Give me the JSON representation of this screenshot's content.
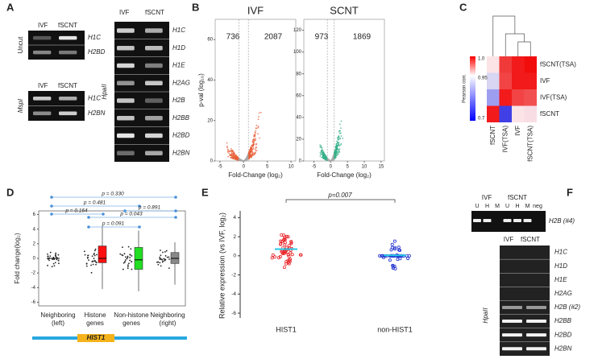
{
  "panelA": {
    "label": "A",
    "uncut": {
      "side": "Uncut",
      "cols": [
        "IVF",
        "fSCNT"
      ],
      "genes": [
        "H1C",
        "H2BD"
      ]
    },
    "mspi": {
      "side": "MspI",
      "cols": [
        "IVF",
        "fSCNT"
      ],
      "genes": [
        "H1C",
        "H2BN"
      ]
    },
    "hpaii": {
      "side": "HpaII",
      "cols": [
        "IVF",
        "fSCNT"
      ],
      "genes": [
        "H1C",
        "H1D",
        "H1E",
        "H2AG",
        "H2B",
        "H2BB",
        "H2BD",
        "H2BN"
      ]
    }
  },
  "panelB": {
    "label": "B",
    "ylabel": "p-val (log₁₀)",
    "xlabel": "Fold-Change (log₂)",
    "plots": [
      {
        "title": "IVF",
        "left": "736",
        "right": "2087",
        "color": "#e8603a",
        "xlim": [
          -6,
          11
        ],
        "xticks": [
          -5,
          0,
          5,
          10
        ],
        "ylim": [
          0,
          70
        ],
        "yticks": [
          0,
          20,
          40,
          60
        ]
      },
      {
        "title": "SCNT",
        "left": "973",
        "right": "1869",
        "color": "#35b08a",
        "xlim": [
          -8,
          16
        ],
        "xticks": [
          -5,
          0,
          5,
          10,
          15
        ],
        "ylim": [
          0,
          130
        ],
        "yticks": [
          0,
          20,
          40,
          60,
          80,
          100,
          120
        ]
      }
    ]
  },
  "panelC": {
    "label": "C",
    "legend_title": "Pearson corr.",
    "legend_ticks": [
      "1.0",
      "0.95",
      "0.7"
    ],
    "rows": [
      "fSCNT(TSA)",
      "IVF",
      "IVF(TSA)",
      "fSCNT"
    ],
    "cols": [
      "fSCNT",
      "IVF(TSA)",
      "IVF",
      "fSCNT(TSA)"
    ],
    "colors": [
      [
        "#fbe3e6",
        "#f03a3a",
        "#f21a1a",
        "#f20d0d"
      ],
      [
        "#d8d6f2",
        "#f24444",
        "#f21a1a",
        "#f21a1a"
      ],
      [
        "#9e9ef0",
        "#f21a1a",
        "#f24444",
        "#f25050"
      ],
      [
        "#f21a1a",
        "#4040e6",
        "#fbe3e6",
        "#f9dde4"
      ]
    ]
  },
  "panelD": {
    "label": "D",
    "ylabel": "Fold change(log₂)",
    "ylim": [
      -6.5,
      6.5
    ],
    "yticks": [
      -6,
      -4,
      -2,
      0,
      2,
      4,
      6
    ],
    "categories": [
      "Neighboring (left)",
      "Histone genes",
      "Non-histone genes",
      "Neighboring (right)"
    ],
    "boxes": [
      null,
      {
        "color": "#ff1010",
        "min": -4.2,
        "q1": -0.6,
        "median": 0,
        "q3": 1.7,
        "max": 4.5
      },
      {
        "color": "#22dd22",
        "min": -4.5,
        "q1": -1.5,
        "median": -0.2,
        "q3": 1.5,
        "max": 3.8
      },
      {
        "color": "#888888",
        "min": -3.6,
        "q1": -0.7,
        "median": 0,
        "q3": 0.8,
        "max": 2.2
      }
    ],
    "pvalues": [
      "p = 0.330",
      "p = 0.481",
      "p = 0.891",
      "p = 0.164",
      "p = 0.043",
      "p = 0.091"
    ],
    "band_label": "HIST1"
  },
  "panelE": {
    "label": "E",
    "ylabel": "Relative expression (vs IVF, log₂)",
    "ylim": [
      -6.5,
      4.7
    ],
    "yticks": [
      -6,
      -4,
      -2,
      0,
      2,
      4
    ],
    "categories": [
      "HIST1",
      "non-HIST1"
    ],
    "pvalue": "p=0.007"
  },
  "panelF": {
    "label": "F",
    "cols": [
      "IVF",
      "fSCNT"
    ],
    "lanes": [
      "U",
      "H",
      "M",
      "U",
      "H",
      "M",
      "neg"
    ],
    "gene": "H2B (#4)",
    "side": "HpaII",
    "cols2": [
      "IVF",
      "fSCNT"
    ],
    "genes": [
      "H1C",
      "H1D",
      "H1E",
      "H2AG",
      "H2B (#2)",
      "H2BB",
      "H2BD",
      "H2BN"
    ]
  }
}
